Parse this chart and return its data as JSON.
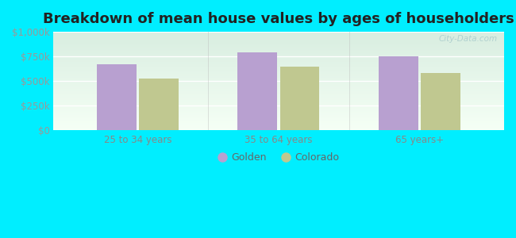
{
  "title": "Breakdown of mean house values by ages of householders",
  "categories": [
    "25 to 34 years",
    "35 to 64 years",
    "65 years+"
  ],
  "golden_values": [
    670000,
    790000,
    755000
  ],
  "colorado_values": [
    525000,
    650000,
    580000
  ],
  "golden_color": "#b8a0d0",
  "colorado_color": "#c0c890",
  "background_color": "#00eeff",
  "plot_bg_top": "#d8ede0",
  "plot_bg_bottom": "#f0faf0",
  "ylim": [
    0,
    1000000
  ],
  "yticks": [
    0,
    250000,
    500000,
    750000,
    1000000
  ],
  "ytick_labels": [
    "$0",
    "$250k",
    "$500k",
    "$750k",
    "$1,000k"
  ],
  "bar_width": 0.28,
  "title_fontsize": 13,
  "legend_labels": [
    "Golden",
    "Colorado"
  ],
  "watermark_text": "City-Data.com"
}
